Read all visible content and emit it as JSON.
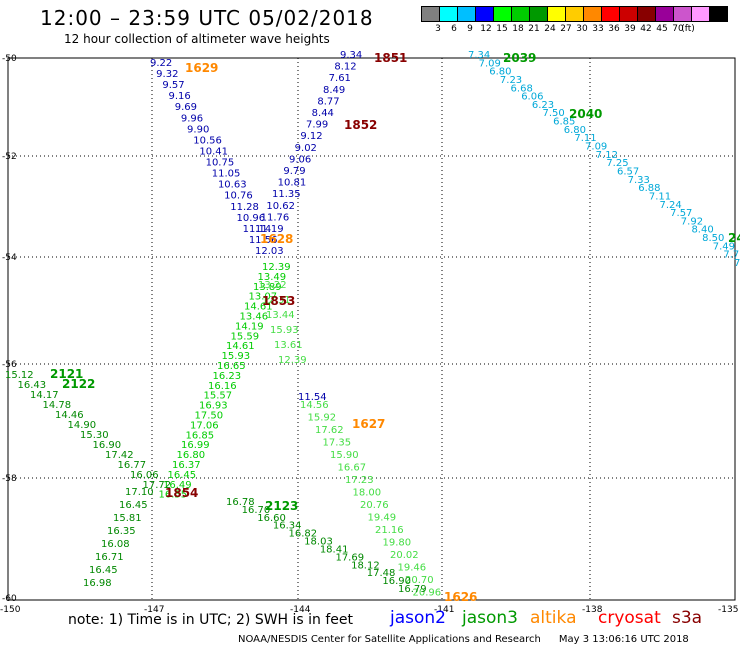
{
  "title": "12:00 – 23:59 UTC 05/02/2018",
  "subtitle": "12 hour collection of altimeter wave heights",
  "legend": {
    "colors": [
      "#808080",
      "#00ffff",
      "#00bfff",
      "#0000ff",
      "#00ff00",
      "#00cc00",
      "#009900",
      "#ffff00",
      "#ffcc00",
      "#ff8800",
      "#ff0000",
      "#cc0000",
      "#880000",
      "#990099",
      "#cc55cc",
      "#ff99ff",
      "#000000"
    ],
    "labels": [
      "3",
      "6",
      "9",
      "12",
      "15",
      "18",
      "21",
      "24",
      "27",
      "30",
      "33",
      "36",
      "39",
      "42",
      "45",
      "70",
      "(ft)"
    ],
    "unit": "(ft)"
  },
  "axes": {
    "lat_labels": [
      "-50",
      "-52",
      "-54",
      "-56",
      "-58",
      "-60"
    ],
    "lon_labels": [
      "-150",
      "-147",
      "-144",
      "-141",
      "-138",
      "-135"
    ],
    "grid": "dotted"
  },
  "passes": [
    {
      "id": "1851",
      "color": "#880000"
    },
    {
      "id": "1852",
      "color": "#880000"
    },
    {
      "id": "1853",
      "color": "#880000"
    },
    {
      "id": "1854",
      "color": "#880000"
    },
    {
      "id": "1626",
      "color": "#ff8800"
    },
    {
      "id": "1627",
      "color": "#ff8800"
    },
    {
      "id": "1628",
      "color": "#ff8800"
    },
    {
      "id": "1629",
      "color": "#ff8800"
    },
    {
      "id": "2039",
      "color": "#009900"
    },
    {
      "id": "2040",
      "color": "#009900"
    },
    {
      "id": "2121",
      "color": "#009900"
    },
    {
      "id": "2122",
      "color": "#009900"
    },
    {
      "id": "2123",
      "color": "#009900"
    },
    {
      "id": "24",
      "color": "#009900"
    }
  ],
  "tracks": [
    {
      "name": "blue-track",
      "color": "#0000aa",
      "values": [
        "9.22",
        "9.32",
        "9.57",
        "9.16",
        "9.69",
        "9.96",
        "9.90",
        "10.56",
        "10.41",
        "10.75",
        "11.05",
        "10.63",
        "10.76",
        "11.28",
        "10.96",
        "11.14",
        "11.56",
        "12.03"
      ]
    },
    {
      "name": "navy-track",
      "color": "#0000aa",
      "values": [
        "9.34",
        "8.12",
        "7.61",
        "8.49",
        "8.77",
        "8.44",
        "7.99",
        "9.12",
        "9.02",
        "9.06",
        "9.79",
        "10.81",
        "11.35",
        "10.62",
        "11.76",
        "11.19"
      ]
    },
    {
      "name": "cyan-track",
      "color": "#00a8d8",
      "values": [
        "7.34",
        "7.09",
        "6.80",
        "7.23",
        "6.68",
        "6.06",
        "6.23",
        "7.50",
        "6.85",
        "6.80",
        "7.11",
        "7.09",
        "7.12",
        "7.25",
        "6.57",
        "7.33",
        "6.88",
        "7.11",
        "7.24",
        "7.57",
        "7.92",
        "8.40",
        "8.50",
        "7.49",
        "7.78",
        "7."
      ]
    },
    {
      "name": "green-track",
      "color": "#00cc00",
      "values": [
        "12.39",
        "13.49",
        "13.89",
        "13.07",
        "14.61",
        "13.46",
        "14.19",
        "15.59",
        "14.61",
        "15.93",
        "16.65",
        "16.23",
        "16.16",
        "15.57",
        "16.93",
        "17.50",
        "17.06",
        "16.85",
        "16.99",
        "16.80",
        "16.37",
        "16.45",
        "16.49",
        "16.55"
      ]
    },
    {
      "name": "light-green-track",
      "color": "#44dd44",
      "values": [
        "13.22",
        "12.31",
        "13.44",
        "15.93",
        "13.61",
        "12.39",
        "14.56",
        "15.92",
        "17.62",
        "17.35",
        "15.90",
        "16.67",
        "17.23",
        "18.00",
        "20.76",
        "19.49",
        "21.16",
        "19.80",
        "20.02",
        "19.46",
        "20.70",
        "20.96"
      ]
    },
    {
      "name": "dark-green-track",
      "color": "#008800",
      "values": [
        "15.12",
        "16.43",
        "14.17",
        "14.78",
        "14.46",
        "14.90",
        "15.30",
        "16.90",
        "17.42",
        "16.77",
        "16.06",
        "17.72",
        "17.10",
        "16.45",
        "15.81",
        "16.35",
        "16.08",
        "16.71",
        "16.45",
        "16.98"
      ]
    },
    {
      "name": "dark-green-east-track",
      "color": "#008800",
      "values": [
        "16.78",
        "16.70",
        "16.60",
        "16.34",
        "16.82",
        "18.03",
        "18.41",
        "17.69",
        "18.12",
        "17.48",
        "16.90",
        "16.79"
      ]
    },
    {
      "name": "navy-south-track",
      "color": "#0000aa",
      "values": [
        "11.54"
      ]
    }
  ],
  "note": "note:  1) Time is in UTC;  2) SWH is in feet",
  "satellites": [
    {
      "name": "jason2",
      "color": "#0000ff"
    },
    {
      "name": "jason3",
      "color": "#009900"
    },
    {
      "name": "altika",
      "color": "#ff8800"
    },
    {
      "name": "cryosat",
      "color": "#ff0000"
    },
    {
      "name": "s3a",
      "color": "#880000"
    }
  ],
  "credit": "NOAA/NESDIS Center for Satellite Applications and Research",
  "timestamp": "May  3 13:06:16 UTC 2018"
}
